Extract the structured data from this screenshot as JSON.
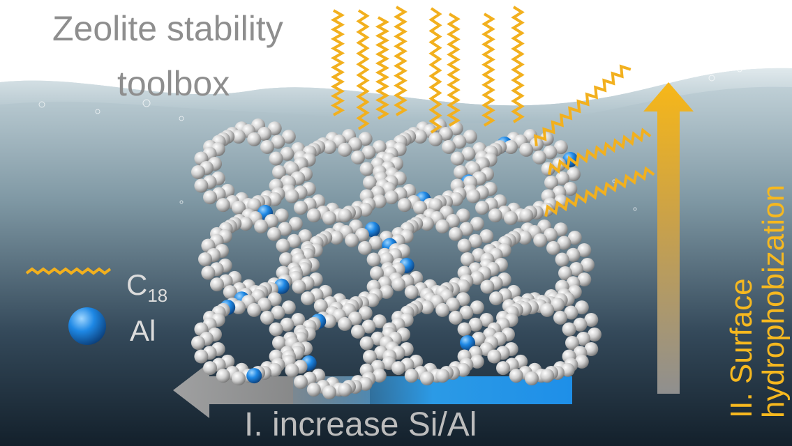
{
  "title": {
    "line1": "Zeolite stability",
    "line2": "toolbox"
  },
  "legend": {
    "chain": {
      "label": "C",
      "subscript": "18",
      "icon": "zigzag-chain-icon",
      "color": "#f2b01e"
    },
    "aluminum": {
      "label": "Al",
      "icon": "blue-sphere-icon",
      "color": "#1e88e5"
    }
  },
  "arrows": {
    "horizontal": {
      "label": "I. increase Si/Al",
      "color": "#9e9e9e",
      "base_color": "#29a3f0"
    },
    "vertical": {
      "line1": "II. Surface",
      "line2": "hydrophobization",
      "color": "#f6b81f"
    }
  },
  "colors": {
    "water_top": "#9fb7c2",
    "water_bottom": "#15232e",
    "sky": "#ffffff",
    "silicon": "#d9d9d9",
    "aluminum": "#1e88e5"
  }
}
